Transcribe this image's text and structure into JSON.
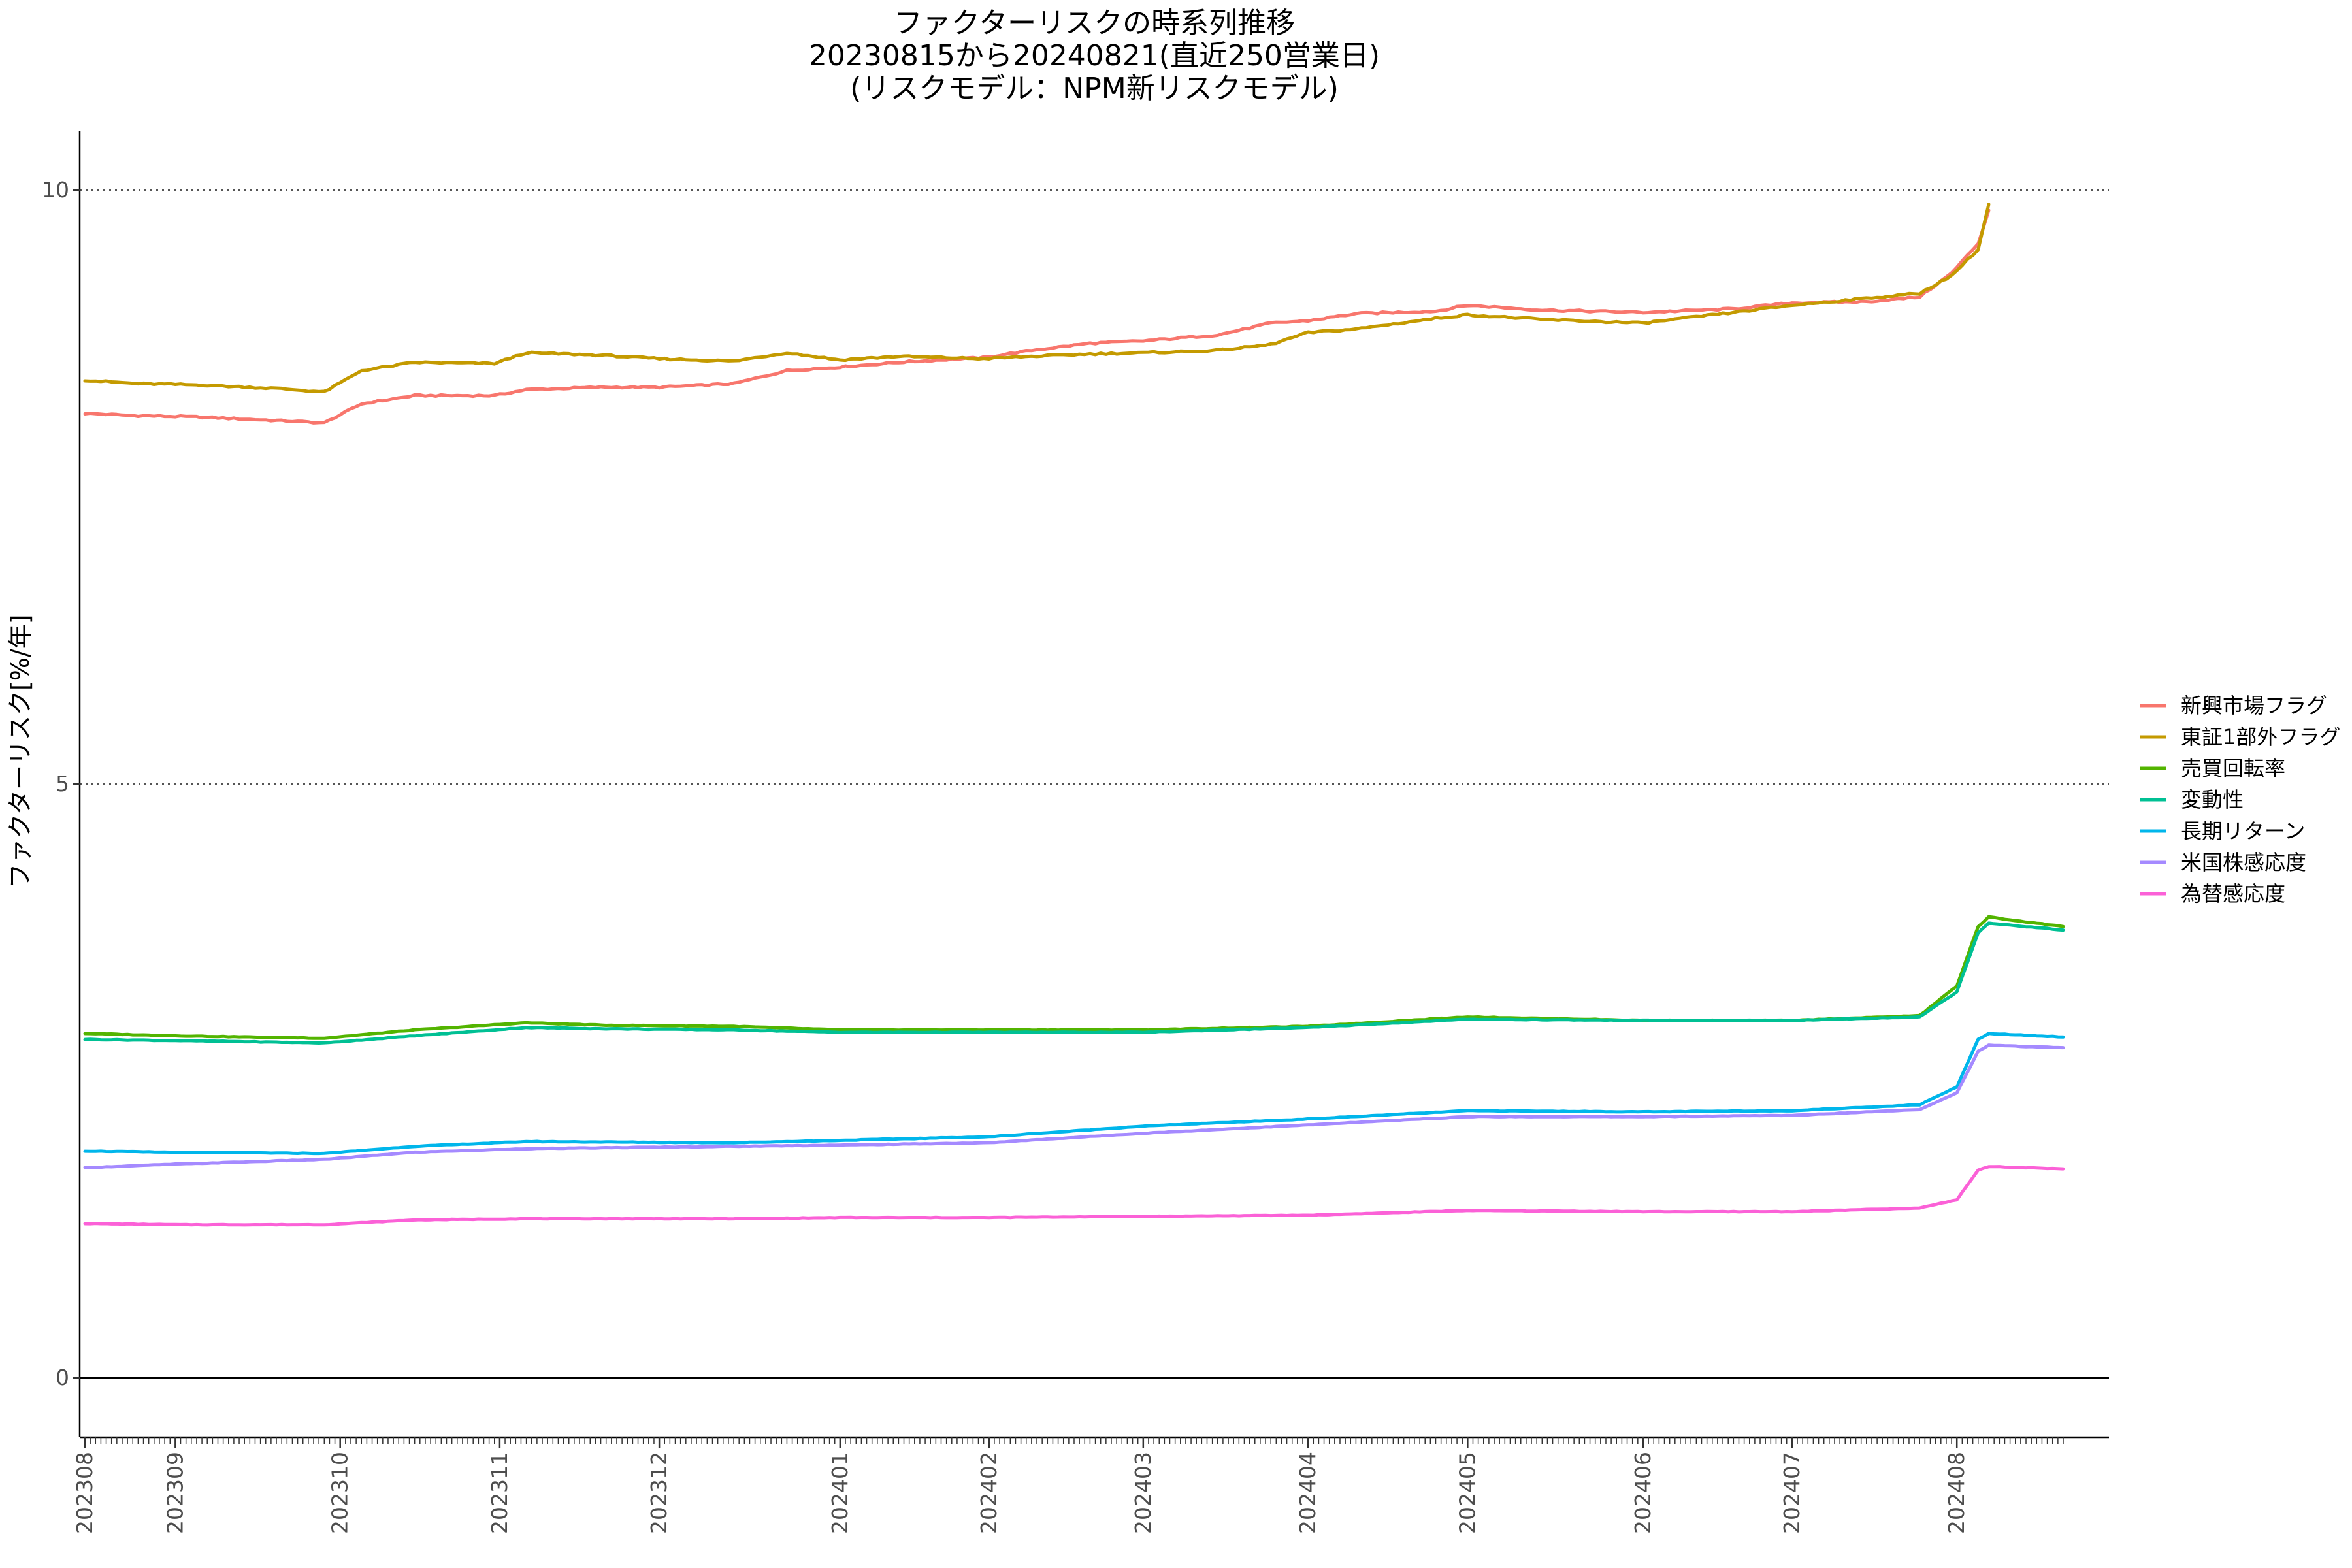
{
  "chart_data": {
    "type": "line",
    "title": [
      "ファクターリスクの時系列推移",
      "20230815から20240821(直近250営業日)",
      "(リスクモデル：NPM新リスクモデル)"
    ],
    "xlabel": "",
    "ylabel": "ファクターリスク[%/年]",
    "ylim": [
      -0.5,
      10.5
    ],
    "yticks": [
      0,
      5,
      10
    ],
    "grid": {
      "horizontal_dotted_at": [
        5,
        10
      ],
      "zero_line": true
    },
    "x_range": [
      "2023-08-15",
      "2024-08-21"
    ],
    "x_tick_labels": [
      {
        "label": "202308",
        "date": "2023-08-15"
      },
      {
        "label": "202309",
        "date": "2023-09-01"
      },
      {
        "label": "202310",
        "date": "2023-10-02"
      },
      {
        "label": "202311",
        "date": "2023-11-01"
      },
      {
        "label": "202312",
        "date": "2023-12-01"
      },
      {
        "label": "202401",
        "date": "2024-01-04"
      },
      {
        "label": "202402",
        "date": "2024-02-01"
      },
      {
        "label": "202403",
        "date": "2024-03-01"
      },
      {
        "label": "202404",
        "date": "2024-04-01"
      },
      {
        "label": "202405",
        "date": "2024-05-01"
      },
      {
        "label": "202406",
        "date": "2024-06-03"
      },
      {
        "label": "202407",
        "date": "2024-07-01"
      },
      {
        "label": "202408",
        "date": "2024-08-01"
      }
    ],
    "legend_position": "right",
    "series": [
      {
        "name": "新興市場フラグ",
        "color": "#F8766D",
        "points": [
          [
            "2023-08-15",
            8.12
          ],
          [
            "2023-08-25",
            8.1
          ],
          [
            "2023-09-05",
            8.09
          ],
          [
            "2023-09-20",
            8.06
          ],
          [
            "2023-09-29",
            8.04
          ],
          [
            "2023-10-06",
            8.2
          ],
          [
            "2023-10-16",
            8.27
          ],
          [
            "2023-10-31",
            8.27
          ],
          [
            "2023-11-06",
            8.32
          ],
          [
            "2023-11-20",
            8.34
          ],
          [
            "2023-12-01",
            8.34
          ],
          [
            "2023-12-15",
            8.37
          ],
          [
            "2023-12-25",
            8.48
          ],
          [
            "2024-01-04",
            8.51
          ],
          [
            "2024-01-15",
            8.55
          ],
          [
            "2024-01-31",
            8.59
          ],
          [
            "2024-02-09",
            8.65
          ],
          [
            "2024-02-20",
            8.71
          ],
          [
            "2024-03-01",
            8.73
          ],
          [
            "2024-03-15",
            8.78
          ],
          [
            "2024-03-25",
            8.88
          ],
          [
            "2024-04-01",
            8.9
          ],
          [
            "2024-04-10",
            8.96
          ],
          [
            "2024-04-25",
            8.98
          ],
          [
            "2024-05-01",
            9.03
          ],
          [
            "2024-05-15",
            8.99
          ],
          [
            "2024-06-03",
            8.97
          ],
          [
            "2024-06-20",
            9.0
          ],
          [
            "2024-07-01",
            9.05
          ],
          [
            "2024-07-15",
            9.06
          ],
          [
            "2024-07-25",
            9.1
          ],
          [
            "2024-07-31",
            9.3
          ],
          [
            "2024-08-05",
            9.55
          ],
          [
            "2024-08-07",
            9.83
          ]
        ]
      },
      {
        "name": "東証1部外フラグ",
        "color": "#C49A00",
        "points": [
          [
            "2023-08-15",
            8.4
          ],
          [
            "2023-08-25",
            8.37
          ],
          [
            "2023-09-05",
            8.36
          ],
          [
            "2023-09-20",
            8.33
          ],
          [
            "2023-09-29",
            8.3
          ],
          [
            "2023-10-06",
            8.48
          ],
          [
            "2023-10-16",
            8.55
          ],
          [
            "2023-10-31",
            8.54
          ],
          [
            "2023-11-06",
            8.63
          ],
          [
            "2023-11-20",
            8.61
          ],
          [
            "2023-12-01",
            8.58
          ],
          [
            "2023-12-15",
            8.56
          ],
          [
            "2023-12-25",
            8.63
          ],
          [
            "2024-01-04",
            8.57
          ],
          [
            "2024-01-15",
            8.6
          ],
          [
            "2024-01-31",
            8.58
          ],
          [
            "2024-02-09",
            8.6
          ],
          [
            "2024-02-20",
            8.62
          ],
          [
            "2024-03-01",
            8.63
          ],
          [
            "2024-03-15",
            8.65
          ],
          [
            "2024-03-25",
            8.7
          ],
          [
            "2024-04-01",
            8.8
          ],
          [
            "2024-04-10",
            8.83
          ],
          [
            "2024-04-25",
            8.92
          ],
          [
            "2024-05-01",
            8.95
          ],
          [
            "2024-05-15",
            8.91
          ],
          [
            "2024-06-03",
            8.88
          ],
          [
            "2024-06-20",
            8.97
          ],
          [
            "2024-07-01",
            9.03
          ],
          [
            "2024-07-15",
            9.09
          ],
          [
            "2024-07-25",
            9.13
          ],
          [
            "2024-07-31",
            9.28
          ],
          [
            "2024-08-05",
            9.5
          ],
          [
            "2024-08-07",
            9.88
          ]
        ]
      },
      {
        "name": "売買回転率",
        "color": "#53B400",
        "points": [
          [
            "2023-08-15",
            2.9
          ],
          [
            "2023-09-01",
            2.88
          ],
          [
            "2023-09-29",
            2.86
          ],
          [
            "2023-10-16",
            2.93
          ],
          [
            "2023-11-06",
            2.99
          ],
          [
            "2023-11-20",
            2.97
          ],
          [
            "2023-12-15",
            2.96
          ],
          [
            "2024-01-04",
            2.93
          ],
          [
            "2024-02-01",
            2.93
          ],
          [
            "2024-03-01",
            2.93
          ],
          [
            "2024-04-01",
            2.96
          ],
          [
            "2024-05-01",
            3.04
          ],
          [
            "2024-06-03",
            3.01
          ],
          [
            "2024-07-01",
            3.01
          ],
          [
            "2024-07-25",
            3.05
          ],
          [
            "2024-08-01",
            3.3
          ],
          [
            "2024-08-05",
            3.8
          ],
          [
            "2024-08-07",
            3.88
          ],
          [
            "2024-08-21",
            3.8
          ]
        ]
      },
      {
        "name": "変動性",
        "color": "#00C094",
        "points": [
          [
            "2023-08-15",
            2.85
          ],
          [
            "2023-09-01",
            2.84
          ],
          [
            "2023-09-29",
            2.82
          ],
          [
            "2023-10-16",
            2.88
          ],
          [
            "2023-11-06",
            2.95
          ],
          [
            "2023-11-20",
            2.94
          ],
          [
            "2023-12-15",
            2.93
          ],
          [
            "2024-01-04",
            2.91
          ],
          [
            "2024-02-01",
            2.91
          ],
          [
            "2024-03-01",
            2.91
          ],
          [
            "2024-04-01",
            2.95
          ],
          [
            "2024-05-01",
            3.02
          ],
          [
            "2024-06-03",
            3.01
          ],
          [
            "2024-07-01",
            3.01
          ],
          [
            "2024-07-25",
            3.04
          ],
          [
            "2024-08-01",
            3.25
          ],
          [
            "2024-08-05",
            3.75
          ],
          [
            "2024-08-07",
            3.83
          ],
          [
            "2024-08-21",
            3.77
          ]
        ]
      },
      {
        "name": "長期リターン",
        "color": "#00B6EB",
        "points": [
          [
            "2023-08-15",
            1.91
          ],
          [
            "2023-09-01",
            1.9
          ],
          [
            "2023-09-29",
            1.89
          ],
          [
            "2023-10-16",
            1.95
          ],
          [
            "2023-11-06",
            1.99
          ],
          [
            "2023-12-15",
            1.98
          ],
          [
            "2024-01-04",
            2.0
          ],
          [
            "2024-02-01",
            2.03
          ],
          [
            "2024-03-01",
            2.12
          ],
          [
            "2024-04-01",
            2.18
          ],
          [
            "2024-05-01",
            2.25
          ],
          [
            "2024-06-03",
            2.24
          ],
          [
            "2024-07-01",
            2.25
          ],
          [
            "2024-07-25",
            2.3
          ],
          [
            "2024-08-01",
            2.45
          ],
          [
            "2024-08-05",
            2.85
          ],
          [
            "2024-08-07",
            2.9
          ],
          [
            "2024-08-21",
            2.87
          ]
        ]
      },
      {
        "name": "米国株感応度",
        "color": "#A58AFF",
        "points": [
          [
            "2023-08-15",
            1.77
          ],
          [
            "2023-09-01",
            1.8
          ],
          [
            "2023-09-29",
            1.84
          ],
          [
            "2023-10-16",
            1.9
          ],
          [
            "2023-11-06",
            1.93
          ],
          [
            "2023-12-15",
            1.95
          ],
          [
            "2024-01-04",
            1.96
          ],
          [
            "2024-02-01",
            1.98
          ],
          [
            "2024-03-01",
            2.06
          ],
          [
            "2024-04-01",
            2.13
          ],
          [
            "2024-05-01",
            2.2
          ],
          [
            "2024-06-03",
            2.2
          ],
          [
            "2024-07-01",
            2.21
          ],
          [
            "2024-07-25",
            2.26
          ],
          [
            "2024-08-01",
            2.4
          ],
          [
            "2024-08-05",
            2.75
          ],
          [
            "2024-08-07",
            2.8
          ],
          [
            "2024-08-21",
            2.78
          ]
        ]
      },
      {
        "name": "為替感応度",
        "color": "#FB61D7",
        "points": [
          [
            "2023-08-15",
            1.3
          ],
          [
            "2023-09-01",
            1.29
          ],
          [
            "2023-09-29",
            1.29
          ],
          [
            "2023-10-16",
            1.33
          ],
          [
            "2023-11-06",
            1.34
          ],
          [
            "2023-12-15",
            1.34
          ],
          [
            "2024-01-04",
            1.35
          ],
          [
            "2024-02-01",
            1.35
          ],
          [
            "2024-03-01",
            1.36
          ],
          [
            "2024-04-01",
            1.37
          ],
          [
            "2024-05-01",
            1.41
          ],
          [
            "2024-06-03",
            1.4
          ],
          [
            "2024-07-01",
            1.4
          ],
          [
            "2024-07-25",
            1.43
          ],
          [
            "2024-08-01",
            1.5
          ],
          [
            "2024-08-05",
            1.75
          ],
          [
            "2024-08-07",
            1.78
          ],
          [
            "2024-08-21",
            1.76
          ]
        ]
      }
    ]
  }
}
